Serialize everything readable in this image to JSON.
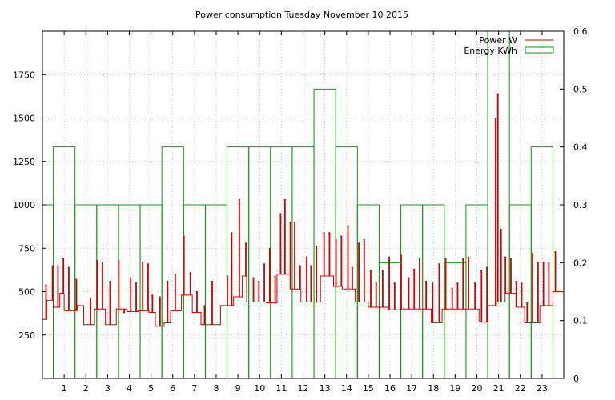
{
  "chart_data": {
    "type": "line",
    "title": "Power consumption Tuesday November 10 2015",
    "grid": true,
    "legend_position": "top-right",
    "x_ticks": [
      "1",
      "2",
      "3",
      "4",
      "5",
      "6",
      "7",
      "8",
      "9",
      "10",
      "11",
      "12",
      "13",
      "14",
      "15",
      "16",
      "17",
      "18",
      "19",
      "20",
      "21",
      "22",
      "23"
    ],
    "xlim": [
      0,
      24
    ],
    "y_left": {
      "ticks": [
        "250",
        "500",
        "750",
        "1000",
        "1250",
        "1500",
        "1750"
      ],
      "ylim": [
        0,
        2000
      ]
    },
    "y_right": {
      "ticks": [
        "0",
        "0.1",
        "0.2",
        "0.3",
        "0.4",
        "0.5",
        "0.6"
      ],
      "ylim": [
        0,
        0.6
      ]
    },
    "series": [
      {
        "name": "Power W",
        "color": "#cc0000",
        "axis": "left",
        "baseline": [
          [
            0,
            340
          ],
          [
            0.2,
            450
          ],
          [
            0.5,
            410
          ],
          [
            0.8,
            490
          ],
          [
            1,
            390
          ],
          [
            1.6,
            420
          ],
          [
            1.9,
            310
          ],
          [
            2.4,
            400
          ],
          [
            2.9,
            310
          ],
          [
            3.4,
            400
          ],
          [
            3.9,
            385
          ],
          [
            4.4,
            390
          ],
          [
            4.9,
            380
          ],
          [
            5.2,
            300
          ],
          [
            5.6,
            320
          ],
          [
            5.9,
            390
          ],
          [
            6.4,
            480
          ],
          [
            6.9,
            380
          ],
          [
            7.3,
            310
          ],
          [
            8.2,
            420
          ],
          [
            8.8,
            470
          ],
          [
            9.2,
            590
          ],
          [
            9.4,
            440
          ],
          [
            10.3,
            435
          ],
          [
            10.8,
            600
          ],
          [
            11.4,
            515
          ],
          [
            11.9,
            440
          ],
          [
            12.5,
            440
          ],
          [
            12.8,
            590
          ],
          [
            13.4,
            530
          ],
          [
            13.8,
            515
          ],
          [
            14.4,
            440
          ],
          [
            15,
            410
          ],
          [
            15.6,
            410
          ],
          [
            15.9,
            395
          ],
          [
            16.6,
            400
          ],
          [
            17.4,
            400
          ],
          [
            17.9,
            320
          ],
          [
            18.4,
            400
          ],
          [
            19.1,
            400
          ],
          [
            19.8,
            400
          ],
          [
            20.1,
            325
          ],
          [
            20.5,
            420
          ],
          [
            20.9,
            440
          ],
          [
            21.3,
            490
          ],
          [
            21.8,
            410
          ],
          [
            22.2,
            320
          ],
          [
            22.9,
            420
          ],
          [
            23.5,
            500
          ]
        ],
        "spikes": [
          [
            0.15,
            540
          ],
          [
            0.45,
            650
          ],
          [
            0.7,
            650
          ],
          [
            0.95,
            690
          ],
          [
            1.2,
            640
          ],
          [
            1.55,
            570
          ],
          [
            2.2,
            460
          ],
          [
            2.5,
            680
          ],
          [
            2.75,
            670
          ],
          [
            3.1,
            560
          ],
          [
            3.5,
            680
          ],
          [
            3.75,
            380
          ],
          [
            4.05,
            580
          ],
          [
            4.3,
            550
          ],
          [
            4.6,
            670
          ],
          [
            4.85,
            660
          ],
          [
            5.05,
            480
          ],
          [
            5.4,
            470
          ],
          [
            5.75,
            560
          ],
          [
            6.1,
            600
          ],
          [
            6.5,
            820
          ],
          [
            6.8,
            610
          ],
          [
            7.1,
            500
          ],
          [
            7.45,
            420
          ],
          [
            7.8,
            560
          ],
          [
            8.5,
            590
          ],
          [
            8.7,
            840
          ],
          [
            9.05,
            1030
          ],
          [
            9.35,
            780
          ],
          [
            9.7,
            580
          ],
          [
            9.95,
            560
          ],
          [
            10.2,
            660
          ],
          [
            10.45,
            750
          ],
          [
            10.7,
            590
          ],
          [
            10.95,
            950
          ],
          [
            11.15,
            1030
          ],
          [
            11.4,
            900
          ],
          [
            11.6,
            900
          ],
          [
            11.85,
            650
          ],
          [
            12.15,
            700
          ],
          [
            12.35,
            650
          ],
          [
            12.6,
            760
          ],
          [
            12.95,
            840
          ],
          [
            13.2,
            840
          ],
          [
            13.5,
            800
          ],
          [
            13.75,
            820
          ],
          [
            14.05,
            880
          ],
          [
            14.25,
            640
          ],
          [
            14.55,
            780
          ],
          [
            14.8,
            800
          ],
          [
            15.1,
            620
          ],
          [
            15.35,
            550
          ],
          [
            15.65,
            620
          ],
          [
            15.95,
            700
          ],
          [
            16.2,
            550
          ],
          [
            16.5,
            710
          ],
          [
            16.85,
            580
          ],
          [
            17.1,
            630
          ],
          [
            17.35,
            690
          ],
          [
            17.65,
            560
          ],
          [
            17.95,
            550
          ],
          [
            18.25,
            660
          ],
          [
            18.55,
            690
          ],
          [
            18.85,
            520
          ],
          [
            19.1,
            550
          ],
          [
            19.35,
            690
          ],
          [
            19.6,
            700
          ],
          [
            19.9,
            550
          ],
          [
            20.2,
            620
          ],
          [
            20.45,
            640
          ],
          [
            20.85,
            1500
          ],
          [
            20.95,
            1640
          ],
          [
            21.1,
            860
          ],
          [
            21.3,
            700
          ],
          [
            21.55,
            690
          ],
          [
            21.8,
            560
          ],
          [
            22.05,
            550
          ],
          [
            22.3,
            440
          ],
          [
            22.55,
            720
          ],
          [
            22.8,
            670
          ],
          [
            23.05,
            670
          ],
          [
            23.3,
            670
          ],
          [
            23.6,
            730
          ]
        ]
      },
      {
        "name": "Energy KWh",
        "color": "#00a000",
        "axis": "right",
        "x": [
          0,
          1,
          2,
          3,
          4,
          5,
          6,
          7,
          8,
          9,
          10,
          11,
          12,
          13,
          14,
          15,
          16,
          17,
          18,
          19,
          20,
          21,
          22,
          23
        ],
        "values": [
          0.3,
          0.4,
          0.3,
          0.3,
          0.3,
          0.3,
          0.4,
          0.3,
          0.3,
          0.4,
          0.4,
          0.4,
          0.4,
          0.5,
          0.4,
          0.3,
          0.2,
          0.3,
          0.3,
          0.2,
          0.3,
          0.6,
          0.3,
          0.4
        ]
      }
    ]
  }
}
